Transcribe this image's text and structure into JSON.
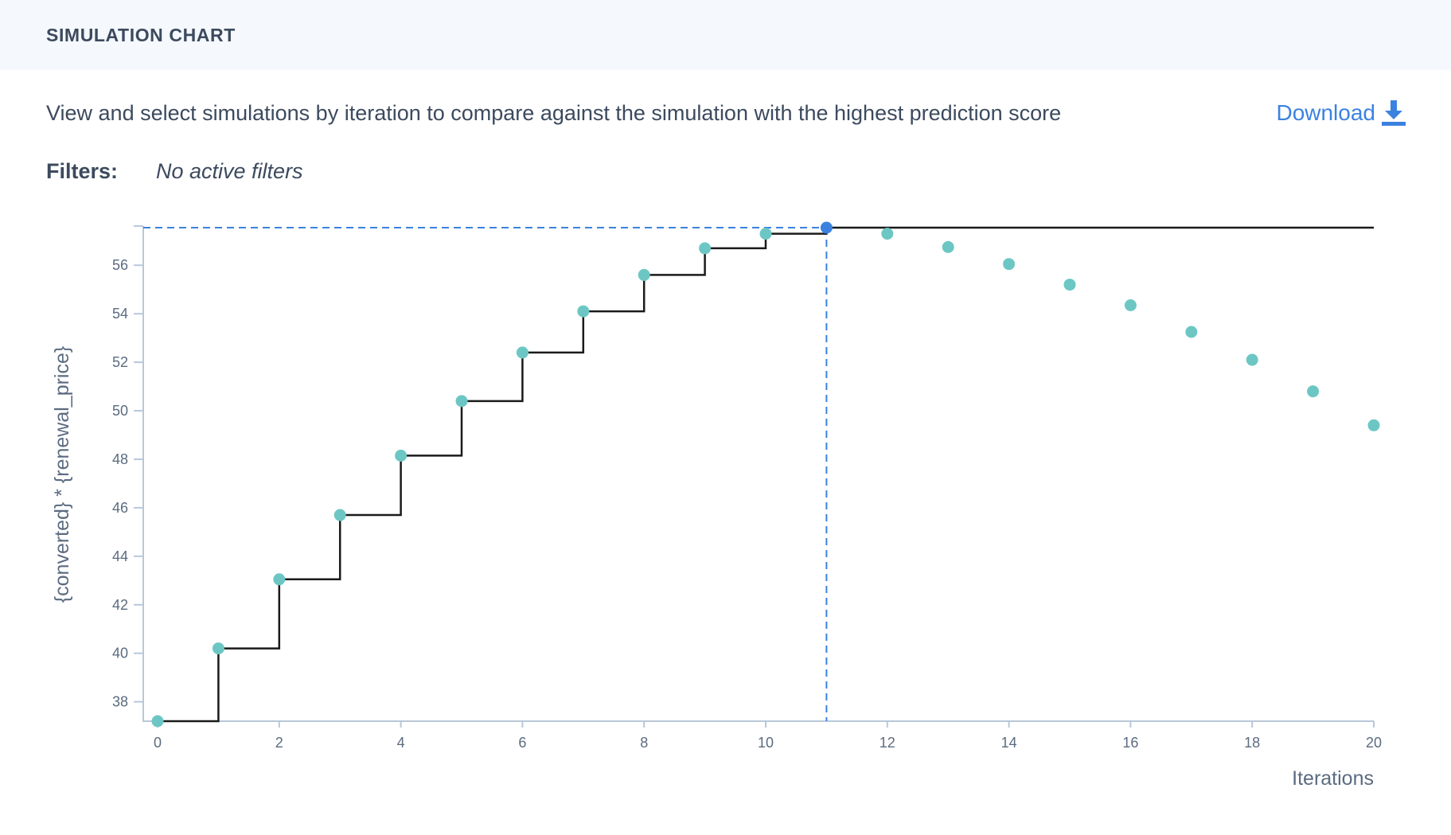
{
  "header": {
    "title": "SIMULATION CHART"
  },
  "description": "View and select simulations by iteration to compare against the simulation with the highest prediction score",
  "download": {
    "label": "Download",
    "icon": "download-icon"
  },
  "filters": {
    "label": "Filters:",
    "value": "No active filters"
  },
  "colors": {
    "point": "#6cc7c4",
    "selected_point": "#3b82e0",
    "step_line": "#1a1a1a",
    "guide_line": "#3b82e0",
    "axis": "#b8c8da"
  },
  "chart_data": {
    "type": "scatter",
    "xlabel": "Iterations",
    "ylabel": "{converted} * {renewal_price}",
    "xlim": [
      0,
      20
    ],
    "ylim": [
      37.2,
      57.55
    ],
    "x_ticks": [
      0,
      2,
      4,
      6,
      8,
      10,
      12,
      14,
      16,
      18,
      20
    ],
    "y_ticks": [
      38,
      40,
      42,
      44,
      46,
      48,
      50,
      52,
      54,
      56
    ],
    "series": [
      {
        "x": [
          0,
          1,
          2,
          3,
          4,
          5,
          6,
          7,
          8,
          9,
          10,
          11,
          12,
          13,
          14,
          15,
          16,
          17,
          18,
          19,
          20
        ],
        "values": [
          37.2,
          40.2,
          43.05,
          45.7,
          48.15,
          50.4,
          52.4,
          54.1,
          55.6,
          56.7,
          57.3,
          57.55,
          57.3,
          56.75,
          56.05,
          55.2,
          54.35,
          53.25,
          52.1,
          50.8,
          49.4
        ]
      }
    ],
    "best_so_far": [
      37.2,
      40.2,
      43.05,
      45.7,
      48.15,
      50.4,
      52.4,
      54.1,
      55.6,
      56.7,
      57.3,
      57.55,
      57.55,
      57.55,
      57.55,
      57.55,
      57.55,
      57.55,
      57.55,
      57.55,
      57.55
    ],
    "selected": {
      "x": 11,
      "y": 57.55
    },
    "grid": false,
    "legend": "none"
  }
}
